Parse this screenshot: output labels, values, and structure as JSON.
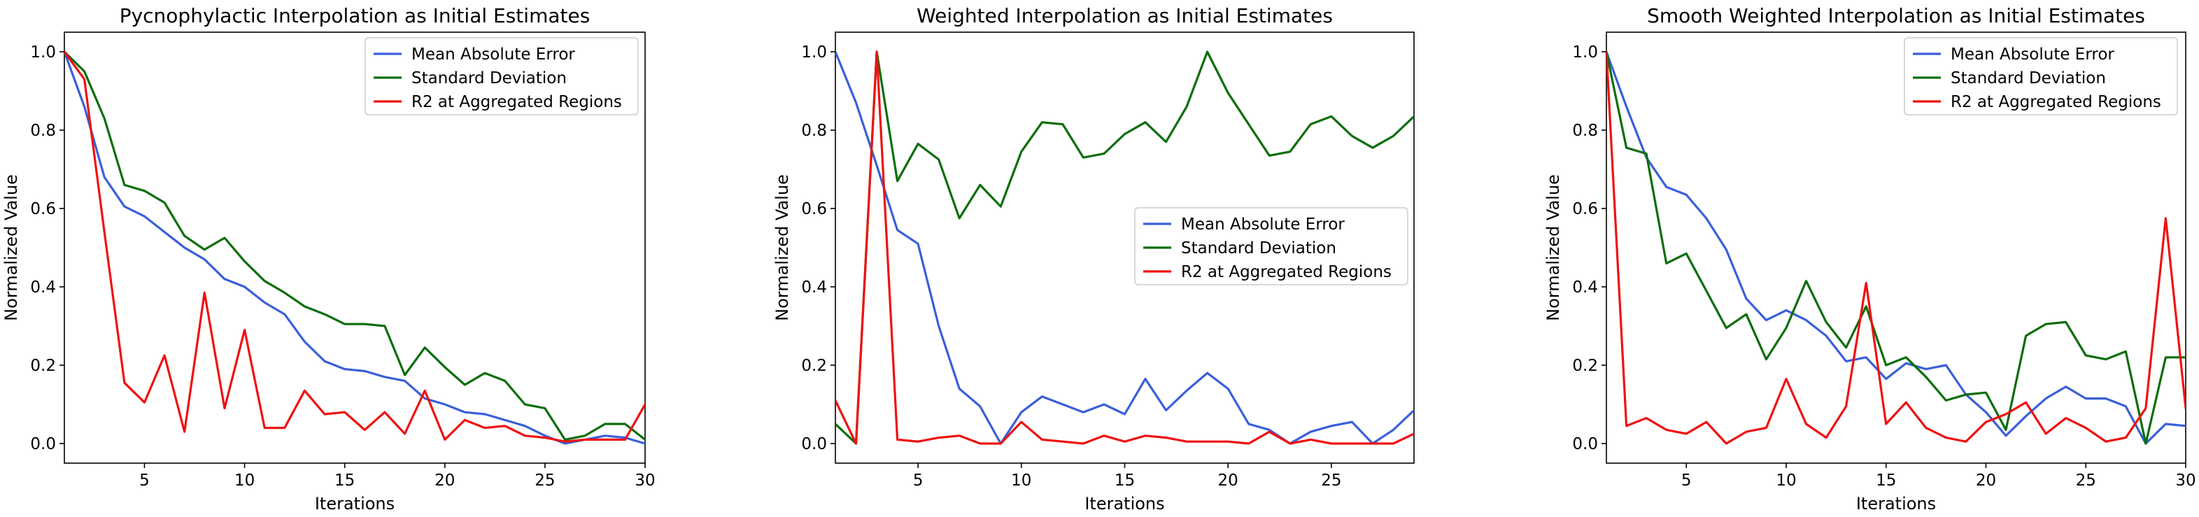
{
  "figure": {
    "ylabel": "Normalized Value",
    "xlabel": "Iterations"
  },
  "chart_data": [
    {
      "type": "line",
      "title": "Pycnophylactic Interpolation as Initial Estimates",
      "xlabel": "Iterations",
      "ylabel": "Normalized Value",
      "xlim": [
        1,
        30
      ],
      "ylim": [
        -0.05,
        1.05
      ],
      "xticks": [
        5,
        10,
        15,
        20,
        25,
        30
      ],
      "yticks": [
        0.0,
        0.2,
        0.4,
        0.6,
        0.8,
        1.0
      ],
      "legend_position": "top-right",
      "x": [
        1,
        2,
        3,
        4,
        5,
        6,
        7,
        8,
        9,
        10,
        11,
        12,
        13,
        14,
        15,
        16,
        17,
        18,
        19,
        20,
        21,
        22,
        23,
        24,
        25,
        26,
        27,
        28,
        29,
        30
      ],
      "series": [
        {
          "name": "Mean Absolute Error",
          "color": "#3a5fd9",
          "values": [
            1.0,
            0.86,
            0.68,
            0.605,
            0.58,
            0.54,
            0.5,
            0.47,
            0.42,
            0.4,
            0.36,
            0.33,
            0.26,
            0.21,
            0.19,
            0.185,
            0.17,
            0.16,
            0.115,
            0.1,
            0.08,
            0.075,
            0.06,
            0.045,
            0.02,
            0.0,
            0.01,
            0.02,
            0.015,
            0.0
          ]
        },
        {
          "name": "Standard Deviation",
          "color": "#0a6e0a",
          "values": [
            1.0,
            0.95,
            0.83,
            0.66,
            0.645,
            0.615,
            0.53,
            0.495,
            0.525,
            0.465,
            0.415,
            0.385,
            0.35,
            0.33,
            0.305,
            0.305,
            0.3,
            0.175,
            0.245,
            0.195,
            0.15,
            0.18,
            0.16,
            0.1,
            0.09,
            0.01,
            0.02,
            0.05,
            0.05,
            0.01
          ]
        },
        {
          "name": "R2 at Aggregated Regions",
          "color": "#f01010",
          "values": [
            1.0,
            0.93,
            0.54,
            0.155,
            0.105,
            0.225,
            0.03,
            0.385,
            0.09,
            0.29,
            0.04,
            0.04,
            0.135,
            0.075,
            0.08,
            0.035,
            0.08,
            0.025,
            0.135,
            0.01,
            0.06,
            0.04,
            0.045,
            0.02,
            0.015,
            0.005,
            0.01,
            0.01,
            0.01,
            0.1
          ]
        }
      ]
    },
    {
      "type": "line",
      "title": "Weighted Interpolation as Initial Estimates",
      "xlabel": "Iterations",
      "ylabel": "Normalized Value",
      "xlim": [
        1,
        29
      ],
      "ylim": [
        -0.05,
        1.05
      ],
      "xticks": [
        5,
        10,
        15,
        20,
        25
      ],
      "yticks": [
        0.0,
        0.2,
        0.4,
        0.6,
        0.8,
        1.0
      ],
      "legend_position": "center-right",
      "x": [
        1,
        2,
        3,
        4,
        5,
        6,
        7,
        8,
        9,
        10,
        11,
        12,
        13,
        14,
        15,
        16,
        17,
        18,
        19,
        20,
        21,
        22,
        23,
        24,
        25,
        26,
        27,
        28,
        29
      ],
      "series": [
        {
          "name": "Mean Absolute Error",
          "color": "#3a5fd9",
          "values": [
            1.0,
            0.87,
            0.71,
            0.545,
            0.51,
            0.3,
            0.14,
            0.095,
            0.0,
            0.08,
            0.12,
            0.1,
            0.08,
            0.1,
            0.075,
            0.165,
            0.085,
            0.135,
            0.18,
            0.14,
            0.05,
            0.035,
            0.0,
            0.03,
            0.045,
            0.055,
            0.0,
            0.035,
            0.085
          ]
        },
        {
          "name": "Standard Deviation",
          "color": "#0a6e0a",
          "values": [
            0.05,
            0.0,
            1.0,
            0.67,
            0.765,
            0.725,
            0.575,
            0.66,
            0.605,
            0.745,
            0.82,
            0.815,
            0.73,
            0.74,
            0.79,
            0.82,
            0.77,
            0.86,
            1.0,
            0.895,
            0.815,
            0.735,
            0.745,
            0.815,
            0.835,
            0.785,
            0.755,
            0.785,
            0.835
          ]
        },
        {
          "name": "R2 at Aggregated Regions",
          "color": "#f01010",
          "values": [
            0.11,
            0.0,
            1.0,
            0.01,
            0.005,
            0.015,
            0.02,
            0.0,
            0.0,
            0.055,
            0.01,
            0.005,
            0.0,
            0.02,
            0.005,
            0.02,
            0.015,
            0.005,
            0.005,
            0.005,
            0.0,
            0.03,
            0.0,
            0.01,
            0.0,
            0.0,
            0.0,
            0.0,
            0.025
          ]
        }
      ]
    },
    {
      "type": "line",
      "title": "Smooth Weighted Interpolation as Initial Estimates",
      "xlabel": "Iterations",
      "ylabel": "Normalized Value",
      "xlim": [
        1,
        30
      ],
      "ylim": [
        -0.05,
        1.05
      ],
      "xticks": [
        5,
        10,
        15,
        20,
        25,
        30
      ],
      "yticks": [
        0.0,
        0.2,
        0.4,
        0.6,
        0.8,
        1.0
      ],
      "legend_position": "top-right",
      "x": [
        1,
        2,
        3,
        4,
        5,
        6,
        7,
        8,
        9,
        10,
        11,
        12,
        13,
        14,
        15,
        16,
        17,
        18,
        19,
        20,
        21,
        22,
        23,
        24,
        25,
        26,
        27,
        28,
        29,
        30
      ],
      "series": [
        {
          "name": "Mean Absolute Error",
          "color": "#3a5fd9",
          "values": [
            1.0,
            0.86,
            0.73,
            0.655,
            0.635,
            0.575,
            0.495,
            0.37,
            0.315,
            0.34,
            0.315,
            0.275,
            0.21,
            0.22,
            0.165,
            0.205,
            0.19,
            0.2,
            0.125,
            0.08,
            0.02,
            0.07,
            0.115,
            0.145,
            0.115,
            0.115,
            0.095,
            0.0,
            0.05,
            0.045
          ]
        },
        {
          "name": "Standard Deviation",
          "color": "#0a6e0a",
          "values": [
            1.0,
            0.755,
            0.74,
            0.46,
            0.485,
            0.39,
            0.295,
            0.33,
            0.215,
            0.295,
            0.415,
            0.31,
            0.245,
            0.35,
            0.2,
            0.22,
            0.17,
            0.11,
            0.125,
            0.13,
            0.035,
            0.275,
            0.305,
            0.31,
            0.225,
            0.215,
            0.235,
            0.0,
            0.22,
            0.22
          ]
        },
        {
          "name": "R2 at Aggregated Regions",
          "color": "#f01010",
          "values": [
            1.0,
            0.045,
            0.065,
            0.035,
            0.025,
            0.055,
            0.0,
            0.03,
            0.04,
            0.165,
            0.05,
            0.015,
            0.095,
            0.41,
            0.05,
            0.105,
            0.04,
            0.015,
            0.005,
            0.055,
            0.075,
            0.105,
            0.025,
            0.065,
            0.04,
            0.005,
            0.015,
            0.09,
            0.575,
            0.09
          ]
        }
      ]
    }
  ]
}
